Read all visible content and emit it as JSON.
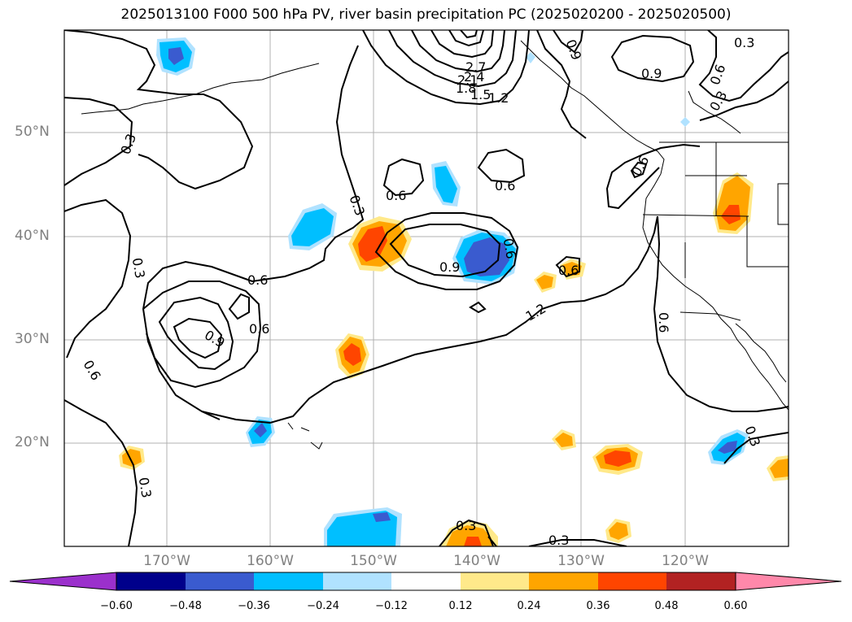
{
  "title": "2025013100 F000 500 hPa PV, river basin precipitation PC (2025020200 - 2025020500)",
  "lat_labels": [
    "50°N",
    "40°N",
    "30°N",
    "20°N"
  ],
  "lon_labels": [
    "170°W",
    "160°W",
    "150°W",
    "140°W",
    "130°W",
    "120°W"
  ],
  "colorbar": {
    "ticks": [
      "−0.60",
      "−0.48",
      "−0.36",
      "−0.24",
      "−0.12",
      "0.12",
      "0.24",
      "0.36",
      "0.48",
      "0.60"
    ],
    "colors": [
      "#9b30cc",
      "#00008b",
      "#3a5bcf",
      "#00bfff",
      "#b0e2ff",
      "#ffffff",
      "#ffe98a",
      "#ffa500",
      "#ff4500",
      "#b22222",
      "#ff88aa"
    ]
  },
  "contour_labels": [
    "2.7",
    "2.4",
    "2.1",
    "1.8",
    "1.5",
    "1.2",
    "0.9",
    "0.9",
    "0.3",
    "0.6",
    "0.3",
    "0.6",
    "0.3",
    "0.6",
    "0.3",
    "0.3",
    "0.6",
    "0.6",
    "0.6",
    "0.9",
    "0.6",
    "0.6",
    "0.6",
    "0.9",
    "1.2",
    "0.6",
    "0.3",
    "0.3",
    "0.3",
    "0.3",
    "0.3",
    "0.3",
    "0.6",
    "0.6"
  ]
}
